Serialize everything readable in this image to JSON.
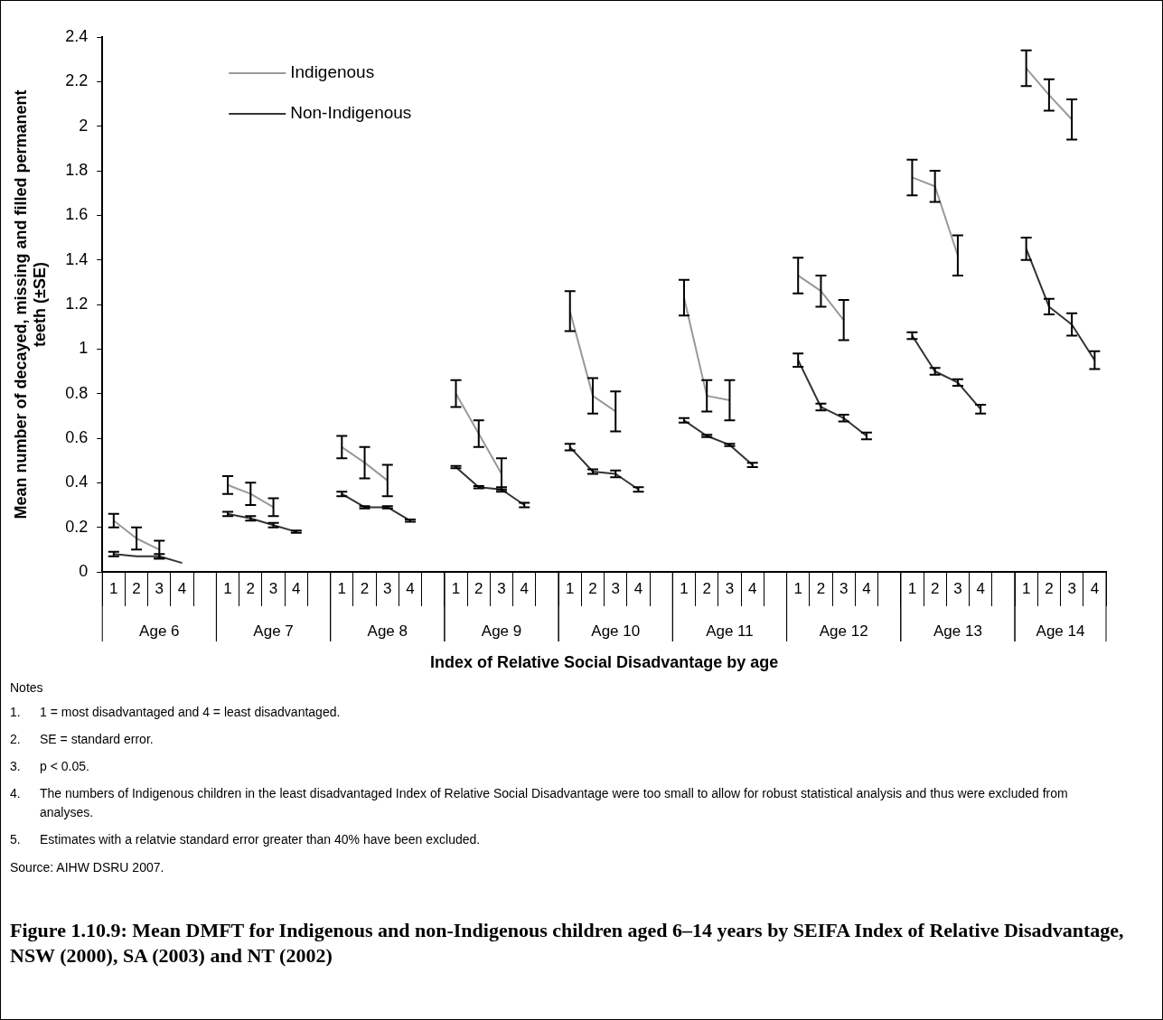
{
  "chart_data": {
    "type": "line",
    "title": "Figure 1.10.9: Mean DMFT for Indigenous and non-Indigenous children aged 6–14 years by SEIFA Index of Relative Disadvantage, NSW (2000), SA (2003) and NT (2002)",
    "xlabel": "Index of Relative Social Disadvantage by age",
    "ylabel": "Mean number of decayed, missing and filled permanent teeth (±SE)",
    "categories": [
      "1",
      "2",
      "3",
      "4",
      null,
      "1",
      "2",
      "3",
      "4",
      null,
      "1",
      "2",
      "3",
      "4",
      null,
      "1",
      "2",
      "3",
      "4",
      null,
      "1",
      "2",
      "3",
      "4",
      null,
      "1",
      "2",
      "3",
      "4",
      null,
      "1",
      "2",
      "3",
      "4",
      null,
      "1",
      "2",
      "3",
      "4",
      null,
      "1",
      "2",
      "3",
      "4"
    ],
    "series": [
      {
        "name": "Indigenous",
        "color": "#999999",
        "values": [
          0.23,
          0.15,
          0.1,
          null,
          null,
          0.39,
          0.35,
          0.29,
          null,
          null,
          0.56,
          0.49,
          0.41,
          null,
          null,
          0.8,
          0.62,
          0.44,
          null,
          null,
          1.17,
          0.79,
          0.72,
          null,
          null,
          1.23,
          0.79,
          0.77,
          null,
          null,
          1.33,
          1.26,
          1.13,
          null,
          null,
          1.77,
          1.73,
          1.42,
          null,
          null,
          2.26,
          2.14,
          2.03,
          null
        ],
        "errors": [
          0.03,
          0.05,
          0.04,
          null,
          null,
          0.04,
          0.05,
          0.04,
          null,
          null,
          0.05,
          0.07,
          0.07,
          null,
          null,
          0.06,
          0.06,
          0.07,
          null,
          null,
          0.09,
          0.08,
          0.09,
          null,
          null,
          0.08,
          0.07,
          0.09,
          null,
          null,
          0.08,
          0.07,
          0.09,
          null,
          null,
          0.08,
          0.07,
          0.09,
          null,
          null,
          0.08,
          0.07,
          0.09,
          null
        ]
      },
      {
        "name": "Non-Indigenous",
        "color": "#333333",
        "values": [
          0.08,
          0.07,
          0.07,
          0.04,
          null,
          0.26,
          0.24,
          0.21,
          0.18,
          null,
          0.35,
          0.29,
          0.29,
          0.23,
          null,
          0.47,
          0.38,
          0.37,
          0.3,
          null,
          0.56,
          0.45,
          0.44,
          0.37,
          null,
          0.68,
          0.61,
          0.57,
          0.48,
          null,
          0.95,
          0.74,
          0.69,
          0.61,
          null,
          1.06,
          0.9,
          0.85,
          0.73,
          null,
          1.45,
          1.19,
          1.11,
          0.95
        ],
        "errors": [
          0.01,
          null,
          0.01,
          null,
          null,
          0.01,
          0.01,
          0.01,
          0.005,
          null,
          0.01,
          0.005,
          0.005,
          0.005,
          null,
          0.005,
          0.005,
          0.01,
          0.01,
          null,
          0.015,
          0.01,
          0.015,
          0.01,
          null,
          0.01,
          0.005,
          0.005,
          0.01,
          null,
          0.03,
          0.015,
          0.015,
          0.015,
          null,
          0.015,
          0.015,
          0.015,
          0.02,
          null,
          0.05,
          0.035,
          0.05,
          0.04
        ]
      }
    ],
    "ylim": [
      0,
      2.4
    ],
    "yticks": [
      0,
      0.2,
      0.4,
      0.6,
      0.8,
      1,
      1.2,
      1.4,
      1.6,
      1.8,
      2,
      2.2,
      2.4
    ],
    "grid": false,
    "legend": "top left",
    "marker": "none",
    "line_style": "solid",
    "annotations": [
      "Age 6",
      "Age 7",
      "Age 8",
      "Age 9",
      "Age 10",
      "Age 11",
      "Age 12",
      "Age 13",
      "Age 14",
      "Notes",
      "1. 1 = most disadvantaged and 4 = least disadvantaged.",
      "2. SE = standard error.",
      "3. p < 0.05.",
      "4. The numbers of Indigenous children in the least disadvantaged Index of Relative Social Disadvantage were too small to allow for robust statistical analysis and thus were excluded from analyses.",
      "5. Estimates with a relatvie standard error greater than 40% have been excluded.",
      "Source: AIHW DSRU 2007."
    ]
  }
}
